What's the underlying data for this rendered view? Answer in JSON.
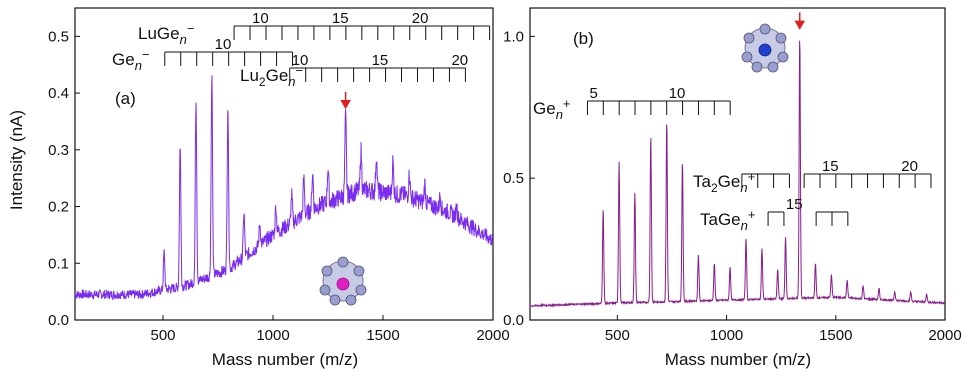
{
  "y_axis_label": "Intensity (nA)",
  "chart_data": [
    {
      "type": "line",
      "panel_label": "(a)",
      "xlabel": "Mass number (m/z)",
      "ylabel": "Intensity (nA)",
      "xlim": [
        100,
        2000
      ],
      "ylim": [
        0,
        0.55
      ],
      "xticks": [
        "500",
        "1000",
        "1500",
        "2000"
      ],
      "yticks": [
        "0.0",
        "0.1",
        "0.2",
        "0.3",
        "0.4",
        "0.5"
      ],
      "series_color": "#7a2cf0",
      "baseline": [
        [
          100,
          0.045
        ],
        [
          400,
          0.045
        ],
        [
          600,
          0.06
        ],
        [
          800,
          0.09
        ],
        [
          1000,
          0.15
        ],
        [
          1200,
          0.2
        ],
        [
          1400,
          0.23
        ],
        [
          1600,
          0.22
        ],
        [
          1800,
          0.19
        ],
        [
          2000,
          0.14
        ]
      ],
      "peaks": [
        {
          "x": 505,
          "y": 0.12
        },
        {
          "x": 578,
          "y": 0.31
        },
        {
          "x": 650,
          "y": 0.39
        },
        {
          "x": 722,
          "y": 0.43
        },
        {
          "x": 795,
          "y": 0.38
        },
        {
          "x": 868,
          "y": 0.19
        },
        {
          "x": 940,
          "y": 0.17
        },
        {
          "x": 1013,
          "y": 0.2
        },
        {
          "x": 1085,
          "y": 0.22
        },
        {
          "x": 1140,
          "y": 0.25
        },
        {
          "x": 1180,
          "y": 0.26
        },
        {
          "x": 1250,
          "y": 0.27
        },
        {
          "x": 1330,
          "y": 0.36
        },
        {
          "x": 1400,
          "y": 0.3
        },
        {
          "x": 1470,
          "y": 0.29
        },
        {
          "x": 1545,
          "y": 0.28
        },
        {
          "x": 1620,
          "y": 0.26
        },
        {
          "x": 1690,
          "y": 0.24
        },
        {
          "x": 1760,
          "y": 0.22
        },
        {
          "x": 1835,
          "y": 0.2
        }
      ],
      "highlight_arrow_x": 1330,
      "combs": [
        {
          "name": "LuGe",
          "sub": "n",
          "sup": "−",
          "start_mz": 823,
          "step": 72.6,
          "count": 17,
          "labels": [
            {
              "n": 10,
              "text": "10"
            },
            {
              "n": 15,
              "text": "15"
            },
            {
              "n": 20,
              "text": "20"
            }
          ],
          "n0": 9
        },
        {
          "name": "Ge",
          "sub": "n",
          "sup": "−",
          "start_mz": 508,
          "step": 72.6,
          "count": 9,
          "labels": [
            {
              "n": 10,
              "text": "10"
            }
          ],
          "n0": 7
        },
        {
          "name": "Lu",
          "name_sub": "2",
          "name_tail": "Ge",
          "sub": "n",
          "sup": "−",
          "start_mz": 1076,
          "step": 72.6,
          "count": 12,
          "labels": [
            {
              "n": 10,
              "text": "10"
            },
            {
              "n": 15,
              "text": "15"
            },
            {
              "n": 20,
              "text": "20"
            }
          ],
          "n0": 10
        }
      ]
    },
    {
      "type": "line",
      "panel_label": "(b)",
      "xlabel": "Mass number (m/z)",
      "ylabel": "",
      "xlim": [
        100,
        2000
      ],
      "ylim": [
        0,
        1.1
      ],
      "xticks": [
        "500",
        "1000",
        "1500",
        "2000"
      ],
      "yticks": [
        "0.0",
        "0.5",
        "1.0"
      ],
      "series_color": "#8b1c8b",
      "baseline": [
        [
          100,
          0.05
        ],
        [
          500,
          0.06
        ],
        [
          1000,
          0.07
        ],
        [
          1500,
          0.08
        ],
        [
          2000,
          0.06
        ]
      ],
      "peaks": [
        {
          "x": 435,
          "y": 0.39
        },
        {
          "x": 508,
          "y": 0.56
        },
        {
          "x": 580,
          "y": 0.45
        },
        {
          "x": 653,
          "y": 0.65
        },
        {
          "x": 726,
          "y": 0.7
        },
        {
          "x": 798,
          "y": 0.56
        },
        {
          "x": 871,
          "y": 0.23
        },
        {
          "x": 944,
          "y": 0.2
        },
        {
          "x": 1016,
          "y": 0.19
        },
        {
          "x": 1089,
          "y": 0.29
        },
        {
          "x": 1162,
          "y": 0.25
        },
        {
          "x": 1234,
          "y": 0.18
        },
        {
          "x": 1270,
          "y": 0.29
        },
        {
          "x": 1335,
          "y": 1.0
        },
        {
          "x": 1407,
          "y": 0.2
        },
        {
          "x": 1480,
          "y": 0.16
        },
        {
          "x": 1552,
          "y": 0.14
        },
        {
          "x": 1625,
          "y": 0.12
        },
        {
          "x": 1698,
          "y": 0.11
        },
        {
          "x": 1770,
          "y": 0.1
        },
        {
          "x": 1843,
          "y": 0.1
        },
        {
          "x": 1916,
          "y": 0.09
        }
      ],
      "highlight_arrow_x": 1335,
      "combs": [
        {
          "name": "Ge",
          "sub": "n",
          "sup": "+",
          "start_mz": 363,
          "step": 72.6,
          "count": 10,
          "labels": [
            {
              "n": 5,
              "text": "5"
            },
            {
              "n": 10,
              "text": "10"
            }
          ],
          "n0": 5
        },
        {
          "name": "Ta",
          "name_sub": "2",
          "name_tail": "Ge",
          "sub": "n",
          "sup": "+",
          "start_mz": 1070,
          "step": 72.6,
          "count": 4,
          "labels": [],
          "n0": 0
        },
        {
          "name": "",
          "sub": "",
          "sup": "",
          "start_mz": 1355,
          "step": 72.6,
          "count": 9,
          "labels": [
            {
              "n": 15,
              "text": "15"
            },
            {
              "n": 20,
              "text": "20"
            }
          ],
          "n0": 14
        },
        {
          "name": "TaGe",
          "sub": "n",
          "sup": "+",
          "start_mz": 1190,
          "step": 72.6,
          "count": 2,
          "labels": [
            {
              "n": 15,
              "text": "15"
            }
          ],
          "n0": 14
        },
        {
          "name": "",
          "sub": "",
          "sup": "",
          "start_mz": 1410,
          "step": 72.6,
          "count": 3,
          "labels": [],
          "n0": 0
        }
      ]
    }
  ]
}
